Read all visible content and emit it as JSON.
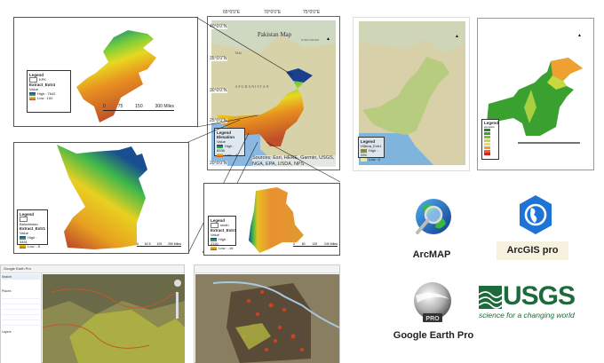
{
  "map_kpk": {
    "legend_title": "Legend",
    "boundary_label": "KPK",
    "layer_name": "Extract_Extr4",
    "value_label": "Value",
    "high_label": "High : 7642",
    "low_label": "Low : 100",
    "scale": [
      "0",
      "75",
      "150",
      "300 Miles"
    ]
  },
  "map_pakistan": {
    "title": "Pakistan Map",
    "country_label": "AFGHANISTAN",
    "region_label": "TAN",
    "kyrgyzstan_label": "KYRGYZSTAN",
    "legend_title": "Legend",
    "layer_name": "Elevation",
    "value_label": "Value",
    "high_label": "High : 8336",
    "low_label": "Low : -4",
    "lon_labels": [
      "65°0'0\"E",
      "70°0'0\"E",
      "75°0'0\"E"
    ],
    "lat_labels": [
      "40°0'0\"N",
      "35°0'0\"N",
      "30°0'0\"N",
      "25°0'0\"N",
      "20°0'0\"N"
    ],
    "credit": "Sources: Esri, HERE, Garmin, USGS, NGA, EPA, USDA, NPS"
  },
  "map_balochistan": {
    "legend_title": "Legend",
    "boundary_label": "Balochistan",
    "layer_name": "Extract_Extr1",
    "value_label": "Value",
    "high_label": "High : 3461",
    "low_label": "Low : -5",
    "scale": [
      "0",
      "62.5",
      "125",
      "250 Miles"
    ]
  },
  "map_sindh": {
    "legend_title": "Legend",
    "boundary_label": "sindh",
    "layer_name": "Extract_Extr3",
    "value_label": "Value",
    "high_label": "High : 2152",
    "low_label": "Low : -16",
    "scale": [
      "0",
      "60",
      "120",
      "240 Miles"
    ]
  },
  "map_terrain": {
    "legend_title": "Legend",
    "layer_name": "Hillsha_Extr1",
    "high_label": "High : 255",
    "low_label": "Low : 0"
  },
  "map_green": {
    "legend_title": "Legend",
    "layer_name": "elevation"
  },
  "software": {
    "arcmap": "ArcMAP",
    "arcgis_pro": "ArcGIS pro",
    "google_earth_pro": "Google Earth Pro",
    "google_earth_badge": "PRO",
    "usgs": "USGS",
    "usgs_tagline": "science for a changing world"
  },
  "screens": {
    "left_title": "Google Earth Pro",
    "sidebar_search": "Search",
    "sidebar_places": "Places",
    "sidebar_layers": "Layers"
  },
  "colors": {
    "elev_high": "#1a3f8f",
    "elev_mid": "#3fb84a",
    "elev_yellow": "#e8e020",
    "elev_low": "#c8502a",
    "usgs_green": "#1d6b3a",
    "arcgis_blue": "#1e73d6"
  }
}
